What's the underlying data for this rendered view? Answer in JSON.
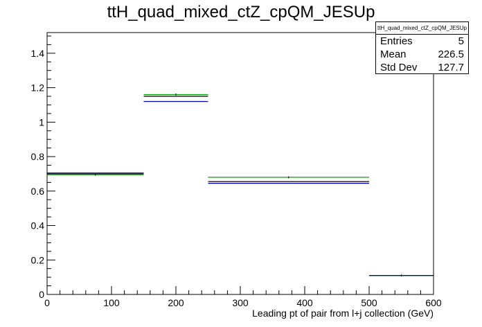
{
  "chart_data": {
    "type": "histogram",
    "title": "ttH_quad_mixed_ctZ_cpQM_JESUp",
    "xlabel": "Leading pt of pair from l+j collection (GeV)",
    "ylabel": "",
    "xlim": [
      0,
      600
    ],
    "ylim": [
      0,
      1.52
    ],
    "x_ticks": [
      0,
      100,
      200,
      300,
      400,
      500,
      600
    ],
    "y_ticks": [
      0,
      0.2,
      0.4,
      0.6,
      0.8,
      1,
      1.2,
      1.4
    ],
    "x_tick_labels": [
      "0",
      "100",
      "200",
      "300",
      "400",
      "500",
      "600"
    ],
    "y_tick_labels": [
      "0",
      "0.2",
      "0.4",
      "0.6",
      "0.8",
      "1",
      "1.2",
      "1.4"
    ],
    "bin_edges": [
      0,
      150,
      250,
      500,
      600
    ],
    "series": [
      {
        "color": "#000000",
        "values": [
          0.7,
          1.15,
          0.655,
          0.11
        ]
      },
      {
        "color": "#00a000",
        "values": [
          0.695,
          1.16,
          0.68,
          0.11
        ]
      },
      {
        "color": "#0000aa",
        "values": [
          0.705,
          1.12,
          0.645,
          0.11
        ]
      }
    ],
    "grid": false,
    "legend": "none"
  },
  "stats": {
    "header": "ttH_quad_mixed_ctZ_cpQM_JESUp",
    "rows": [
      {
        "label": "Entries",
        "value": "5"
      },
      {
        "label": "Mean",
        "value": "226.5"
      },
      {
        "label": "Std Dev",
        "value": "127.7"
      }
    ]
  }
}
